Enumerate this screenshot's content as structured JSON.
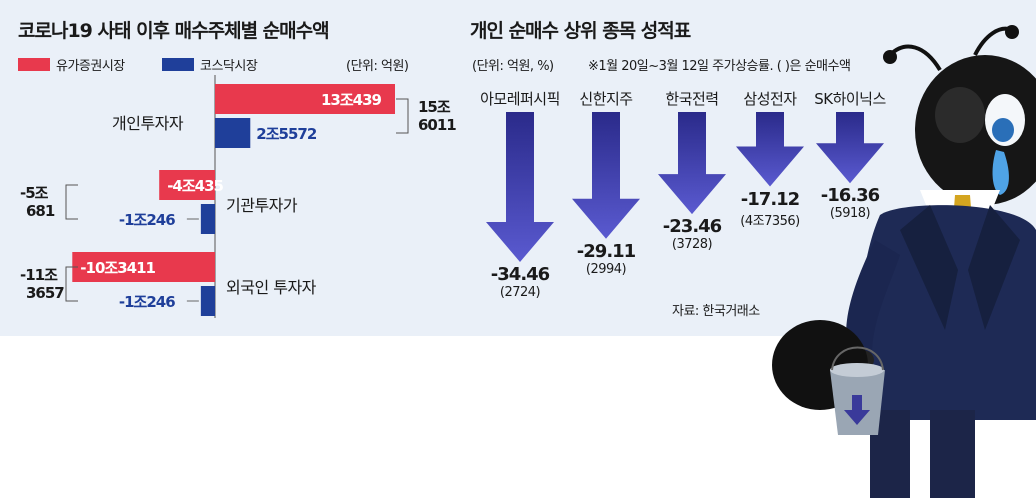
{
  "left": {
    "title": "코로나19 사태 이후 매수주체별 순매수액",
    "legend": [
      {
        "label": "유가증권시장",
        "color": "#e8394d"
      },
      {
        "label": "코스닥시장",
        "color": "#1f3f9a"
      }
    ],
    "unit": "(단위: 억원)"
  },
  "right": {
    "title": "개인 순매수 상위 종목 성적표",
    "unit": "(단위: 억원, %)",
    "note": "※1월 20일~3월 12일 주가상승률. ( )은 순매수액",
    "source": "자료: 한국거래소"
  },
  "chart_data": [
    {
      "type": "bar",
      "title": "코로나19 사태 이후 매수주체별 순매수액",
      "unit": "억원",
      "categories": [
        "개인투자자",
        "기관투자가",
        "외국인 투자자"
      ],
      "series": [
        {
          "name": "유가증권시장",
          "values": [
            130439,
            -40435,
            -103411
          ],
          "labels": [
            "13조439",
            "-4조435",
            "-10조3411"
          ]
        },
        {
          "name": "코스닥시장",
          "values": [
            25572,
            -10246,
            -10246
          ],
          "labels": [
            "2조5572",
            "-1조246",
            "-1조246"
          ]
        }
      ],
      "totals": [
        {
          "line1": "15조",
          "line2": "6011",
          "value": 156011
        },
        {
          "line1": "-5조",
          "line2": "681",
          "value": -50681
        },
        {
          "line1": "-11조",
          "line2": "3657",
          "value": -113657
        }
      ]
    },
    {
      "type": "bar",
      "title": "개인 순매수 상위 종목 성적표",
      "unit": "%",
      "categories": [
        "아모레퍼시픽",
        "신한지주",
        "한국전력",
        "삼성전자",
        "SK하이닉스"
      ],
      "values": [
        -34.46,
        -29.11,
        -23.46,
        -17.12,
        -16.36
      ],
      "value_labels": [
        "-34.46",
        "-29.11",
        "-23.46",
        "-17.12",
        "-16.36"
      ],
      "net_buy": [
        "(2724)",
        "(2994)",
        "(3728)",
        "(4조7356)",
        "(5918)"
      ],
      "colors": {
        "arrow_top": "#2a2a8a",
        "arrow_bottom": "#5a5ad0"
      }
    }
  ]
}
